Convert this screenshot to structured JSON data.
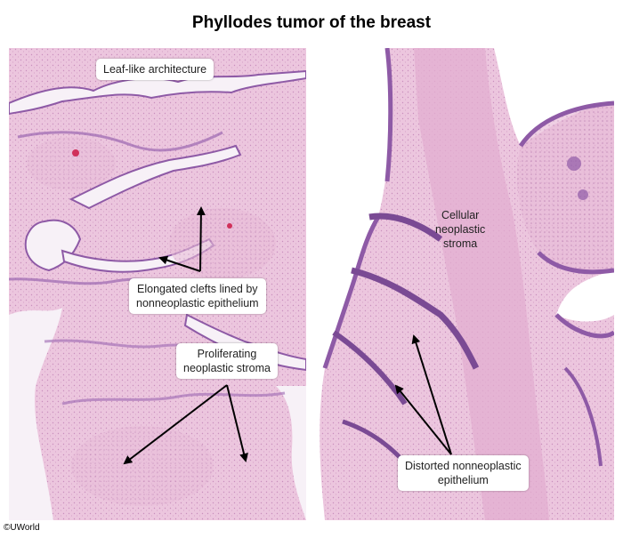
{
  "title": "Phyllodes tumor of the breast",
  "left_panel": {
    "labels": {
      "leaf": "Leaf-like architecture",
      "clefts_line1": "Elongated clefts lined by",
      "clefts_line2": "nonneoplastic epithelium",
      "stroma_line1": "Proliferating",
      "stroma_line2": "neoplastic stroma"
    }
  },
  "right_panel": {
    "labels": {
      "cellular_line1": "Cellular",
      "cellular_line2": "neoplastic",
      "cellular_line3": "stroma",
      "distorted_line1": "Distorted nonneoplastic",
      "distorted_line2": "epithelium"
    }
  },
  "copyright": "©UWorld",
  "colors": {
    "stroma": "#ecc4dc",
    "stroma_dense": "#e2aecf",
    "epithelium": "#8e5aa6",
    "lumen": "#f4eef6",
    "background": "#ffffff"
  }
}
